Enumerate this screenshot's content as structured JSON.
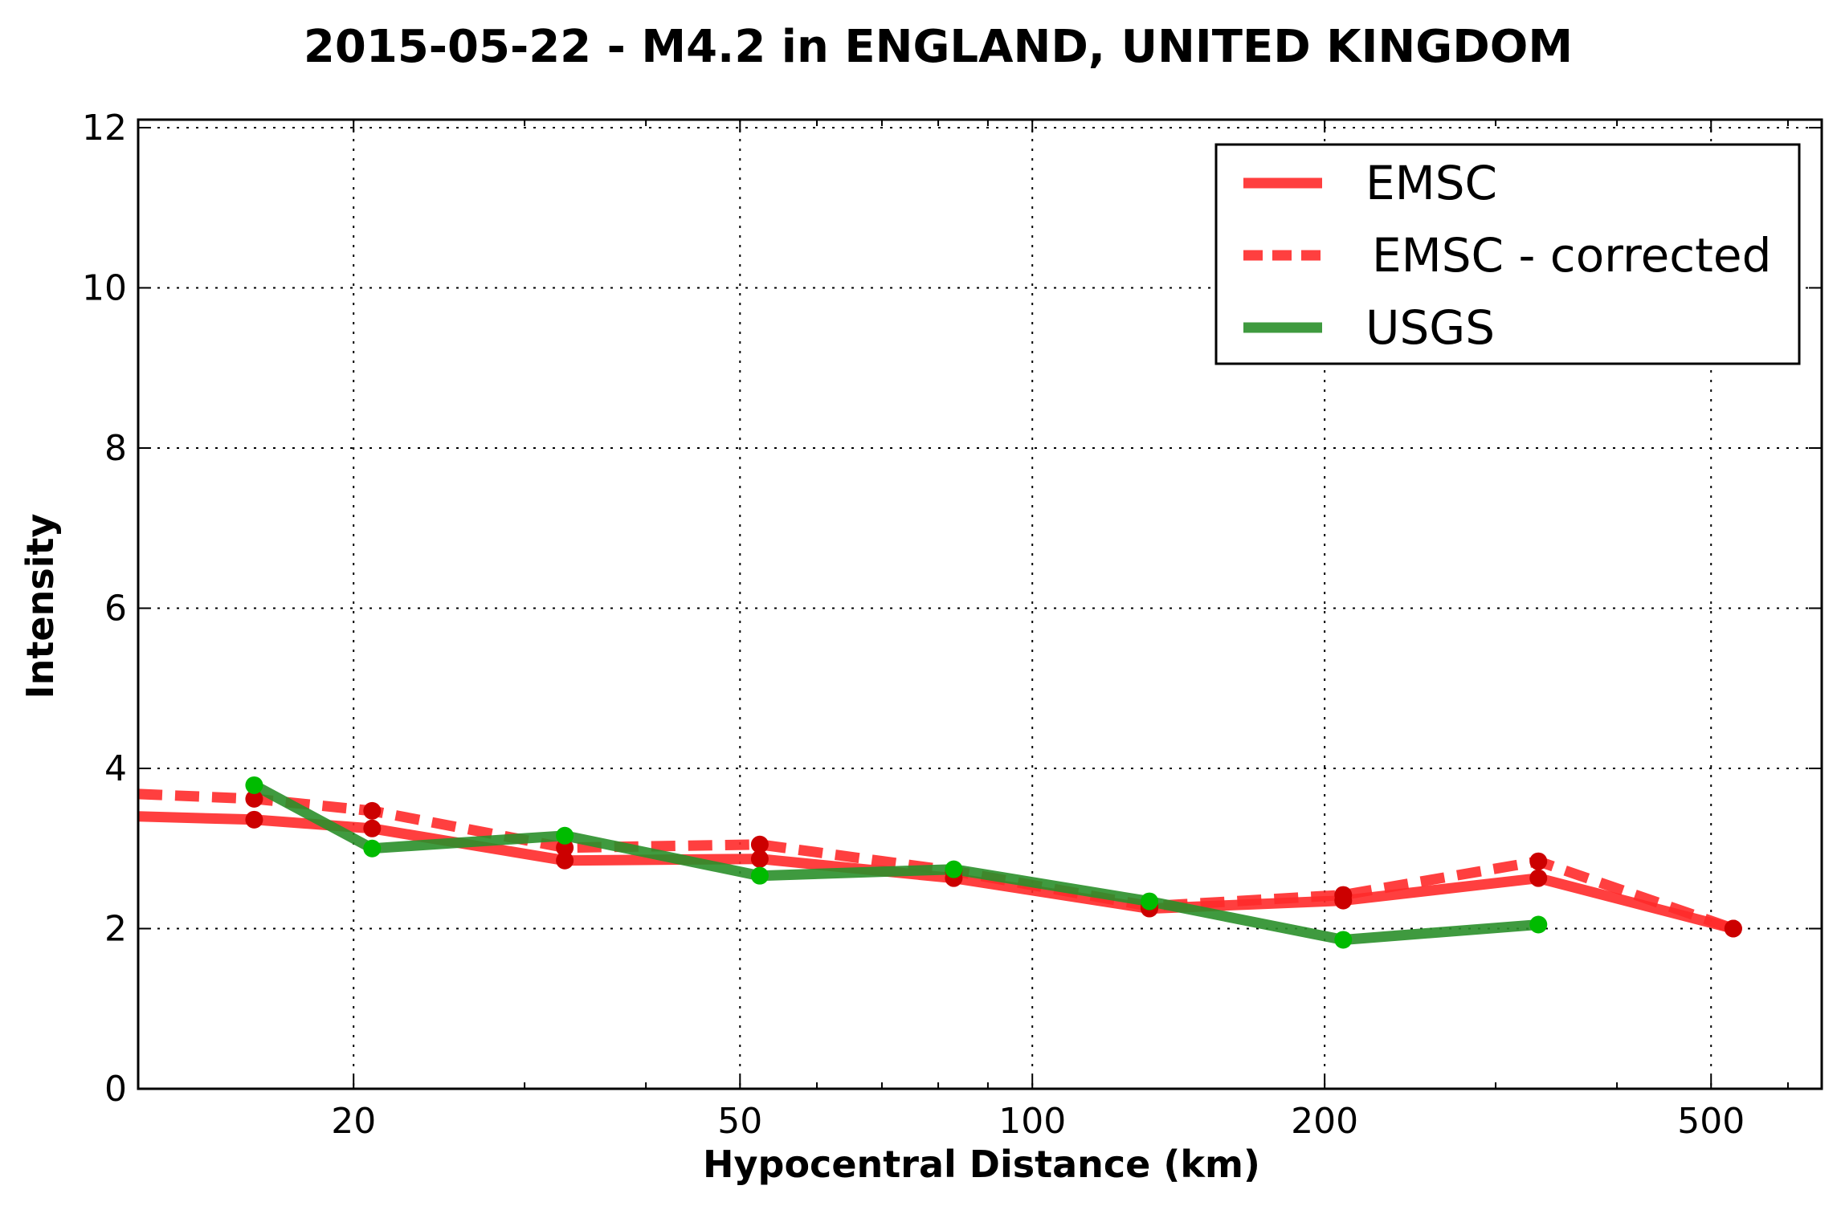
{
  "chart_data": {
    "type": "line",
    "title": "2015-05-22 - M4.2 in ENGLAND, UNITED KINGDOM",
    "xlabel": "Hypocentral Distance (km)",
    "ylabel": "Intensity",
    "xscale": "log",
    "xlim": [
      12,
      650
    ],
    "ylim": [
      0,
      12.1
    ],
    "xticks": [
      20,
      50,
      100,
      200,
      500
    ],
    "xtick_labels": [
      "20",
      "50",
      "100",
      "200",
      "500"
    ],
    "yticks": [
      0,
      2,
      4,
      6,
      8,
      10,
      12
    ],
    "ytick_labels": [
      "0",
      "2",
      "4",
      "6",
      "8",
      "10",
      "12"
    ],
    "grid": true,
    "legend_position": "top-right",
    "series": [
      {
        "name": "EMSC",
        "color": "#ff2a2a",
        "linestyle": "solid",
        "x": [
          12,
          15.8,
          20.9,
          33,
          52.4,
          83,
          132,
          209,
          332,
          527
        ],
        "y": [
          3.4,
          3.36,
          3.25,
          2.85,
          2.87,
          2.63,
          2.25,
          2.35,
          2.63,
          2.0
        ]
      },
      {
        "name": "EMSC - corrected",
        "color": "#ff2a2a",
        "linestyle": "dashed",
        "x": [
          12,
          15.8,
          20.9,
          33,
          52.4,
          83,
          132,
          209,
          332,
          527
        ],
        "y": [
          3.68,
          3.62,
          3.47,
          3.01,
          3.05,
          2.72,
          2.28,
          2.42,
          2.84,
          2.0
        ]
      },
      {
        "name": "USGS",
        "color": "#2a8f2a",
        "linestyle": "solid",
        "x": [
          15.8,
          20.9,
          33,
          52.4,
          83,
          132,
          209,
          332
        ],
        "y": [
          3.79,
          3.0,
          3.16,
          2.66,
          2.74,
          2.34,
          1.86,
          2.05
        ]
      }
    ],
    "marker_colors": {
      "EMSC": "#cc0000",
      "USGS": "#00bb00"
    }
  }
}
